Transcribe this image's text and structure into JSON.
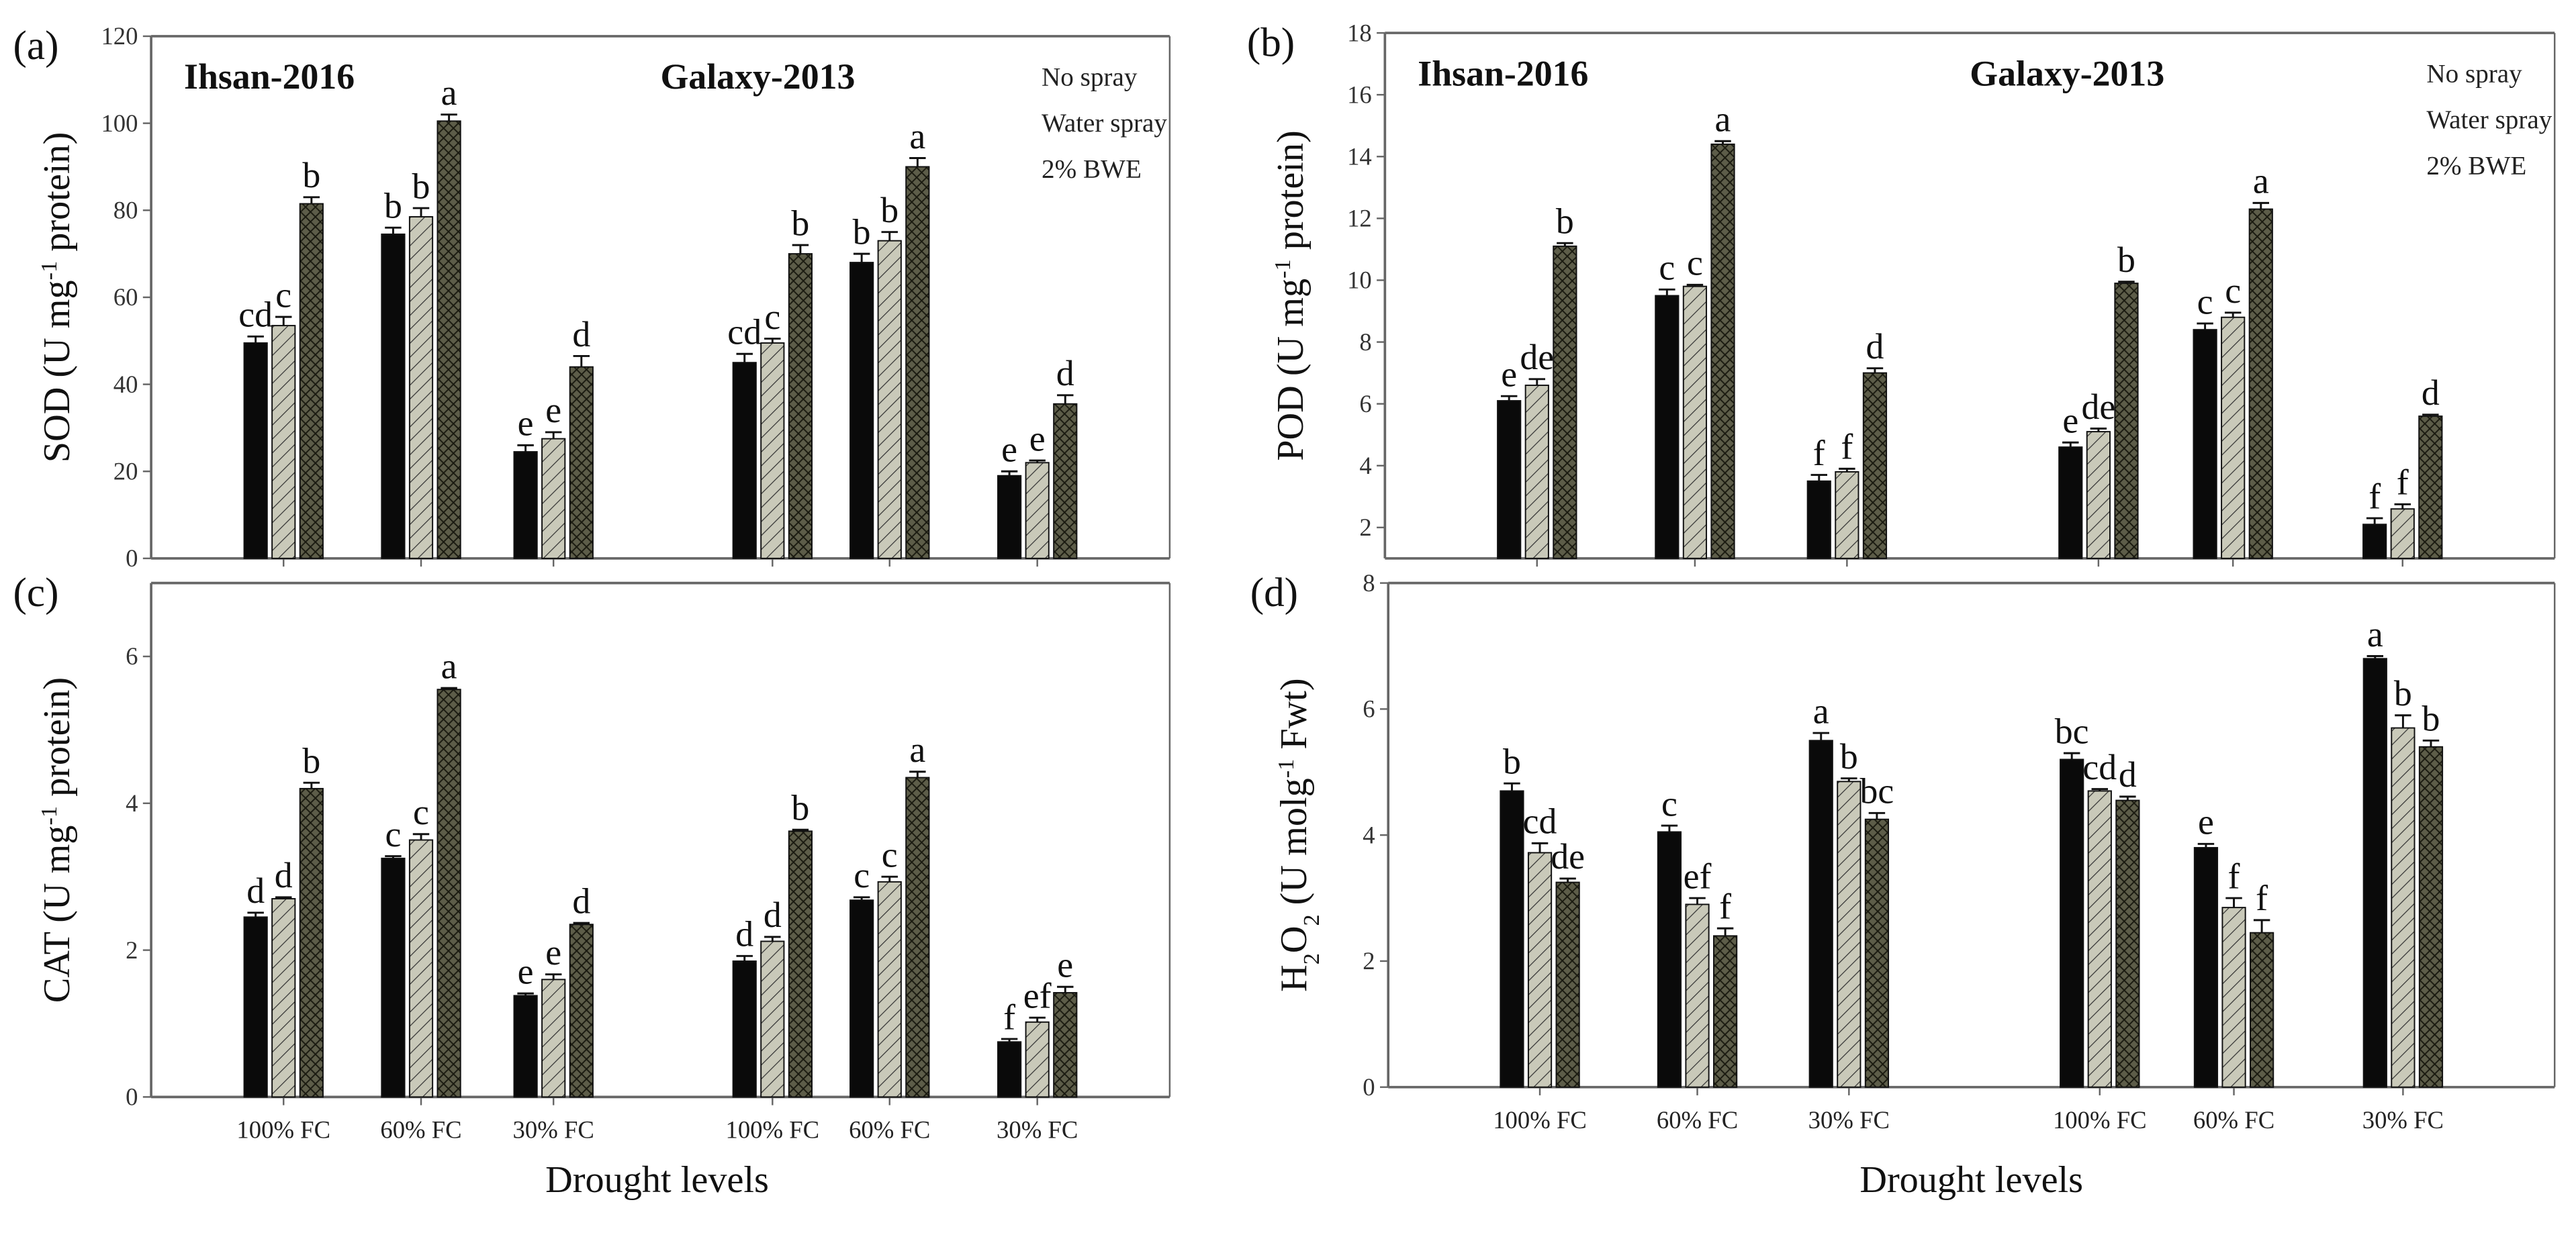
{
  "colors": {
    "no_spray": "#0a0a0a",
    "water_spray": "#c9c9b9",
    "bwe": "#5d5d49",
    "axis": "#666666"
  },
  "x_axis_label": "Drought levels",
  "chart_data": [
    {
      "type": "bar",
      "panel": "(a)",
      "ylim": [
        0,
        120
      ],
      "yticks": [
        0,
        20,
        40,
        60,
        80,
        100,
        120
      ],
      "ylabel": [
        {
          "t": "SOD (U mg"
        },
        {
          "t": "-1",
          "s": "sup"
        },
        {
          "t": " protein)"
        }
      ],
      "titles": [
        "Ihsan-2016",
        "Galaxy-2013"
      ],
      "legend": [
        "No spray",
        "Water spray",
        "2% BWE"
      ],
      "show_xticks": false,
      "categories": [
        "100% FC",
        "60% FC",
        "30% FC",
        "100% FC",
        "60% FC",
        "30% FC"
      ],
      "series": [
        {
          "name": "No spray",
          "values": [
            49.5,
            74.5,
            24.5,
            45,
            68,
            19
          ],
          "err": [
            1.5,
            1.5,
            1.5,
            2,
            2,
            1
          ],
          "letters": [
            "cd",
            "b",
            "e",
            "cd",
            "b",
            "e"
          ]
        },
        {
          "name": "Water spray",
          "values": [
            53.5,
            78.5,
            27.5,
            49.5,
            73,
            22
          ],
          "err": [
            2,
            2,
            1.5,
            1,
            2,
            0.5
          ],
          "letters": [
            "c",
            "b",
            "e",
            "c",
            "b",
            "e"
          ]
        },
        {
          "name": "2% BWE",
          "values": [
            81.5,
            100.5,
            44,
            70,
            90,
            35.5
          ],
          "err": [
            1.5,
            1.5,
            2.5,
            2,
            2,
            2
          ],
          "letters": [
            "b",
            "a",
            "d",
            "b",
            "a",
            "d"
          ]
        }
      ]
    },
    {
      "type": "bar",
      "panel": "(b)",
      "ylim": [
        1,
        18
      ],
      "yticks": [
        2,
        4,
        6,
        8,
        10,
        12,
        14,
        16,
        18
      ],
      "ylabel": [
        {
          "t": "POD (U mg"
        },
        {
          "t": "-1",
          "s": "sup"
        },
        {
          "t": " protein)"
        }
      ],
      "titles": [
        "Ihsan-2016",
        "Galaxy-2013"
      ],
      "legend": [
        "No spray",
        "Water spray",
        "2% BWE"
      ],
      "show_xticks": false,
      "categories": [
        "100% FC",
        "60% FC",
        "30% FC",
        "100% FC",
        "60% FC",
        "30% FC"
      ],
      "series": [
        {
          "name": "No spray",
          "values": [
            6.1,
            9.5,
            3.5,
            4.6,
            8.4,
            2.1
          ],
          "err": [
            0.15,
            0.2,
            0.2,
            0.15,
            0.2,
            0.2
          ],
          "letters": [
            "e",
            "c",
            "f",
            "e",
            "c",
            "f"
          ]
        },
        {
          "name": "Water spray",
          "values": [
            6.6,
            9.8,
            3.8,
            5.1,
            8.8,
            2.6
          ],
          "err": [
            0.2,
            0.05,
            0.1,
            0.1,
            0.15,
            0.15
          ],
          "letters": [
            "de",
            "c",
            "f",
            "de",
            "c",
            "f"
          ]
        },
        {
          "name": "2% BWE",
          "values": [
            11.1,
            14.4,
            7.0,
            9.9,
            12.3,
            5.6
          ],
          "err": [
            0.1,
            0.1,
            0.15,
            0.05,
            0.2,
            0.05
          ],
          "letters": [
            "b",
            "a",
            "d",
            "b",
            "a",
            "d"
          ]
        }
      ]
    },
    {
      "type": "bar",
      "panel": "(c)",
      "ylim": [
        0,
        7
      ],
      "yticks": [
        0,
        2,
        4,
        6
      ],
      "ylabel": [
        {
          "t": "CAT (U mg"
        },
        {
          "t": "-1",
          "s": "sup"
        },
        {
          "t": " protein)"
        }
      ],
      "titles": [],
      "legend": [],
      "show_xticks": true,
      "categories": [
        "100% FC",
        "60% FC",
        "30% FC",
        "100% FC",
        "60% FC",
        "30% FC"
      ],
      "series": [
        {
          "name": "No spray",
          "values": [
            2.45,
            3.25,
            1.38,
            1.85,
            2.68,
            0.75
          ],
          "err": [
            0.06,
            0.03,
            0.03,
            0.07,
            0.04,
            0.04
          ],
          "letters": [
            "d",
            "c",
            "e",
            "d",
            "c",
            "f"
          ]
        },
        {
          "name": "Water spray",
          "values": [
            2.7,
            3.5,
            1.6,
            2.12,
            2.93,
            1.02
          ],
          "err": [
            0.02,
            0.08,
            0.07,
            0.06,
            0.07,
            0.06
          ],
          "letters": [
            "d",
            "c",
            "e",
            "d",
            "c",
            "ef"
          ]
        },
        {
          "name": "2% BWE",
          "values": [
            4.2,
            5.55,
            2.35,
            3.62,
            4.35,
            1.42
          ],
          "err": [
            0.08,
            0.02,
            0.02,
            0.02,
            0.08,
            0.08
          ],
          "letters": [
            "b",
            "a",
            "d",
            "b",
            "a",
            "e"
          ]
        }
      ]
    },
    {
      "type": "bar",
      "panel": "(d)",
      "ylim": [
        0,
        8
      ],
      "yticks": [
        0,
        2,
        4,
        6,
        8
      ],
      "ylabel": [
        {
          "t": "H"
        },
        {
          "t": "2",
          "s": "sub"
        },
        {
          "t": "O"
        },
        {
          "t": "2",
          "s": "sub"
        },
        {
          "t": " (U molg"
        },
        {
          "t": "-1",
          "s": "sup"
        },
        {
          "t": " Fwt)"
        }
      ],
      "titles": [],
      "legend": [],
      "show_xticks": true,
      "categories": [
        "100% FC",
        "60% FC",
        "30% FC",
        "100% FC",
        "60% FC",
        "30% FC"
      ],
      "series": [
        {
          "name": "No spray",
          "values": [
            4.7,
            4.05,
            5.5,
            5.2,
            3.8,
            6.8
          ],
          "err": [
            0.12,
            0.1,
            0.12,
            0.1,
            0.06,
            0.04
          ],
          "letters": [
            "b",
            "c",
            "a",
            "bc",
            "e",
            "a"
          ]
        },
        {
          "name": "Water spray",
          "values": [
            3.72,
            2.9,
            4.85,
            4.7,
            2.85,
            5.7
          ],
          "err": [
            0.15,
            0.1,
            0.05,
            0.03,
            0.15,
            0.2
          ],
          "letters": [
            "cd",
            "ef",
            "b",
            "cd",
            "f",
            "b"
          ]
        },
        {
          "name": "2% BWE",
          "values": [
            3.25,
            2.4,
            4.25,
            4.55,
            2.45,
            5.4
          ],
          "err": [
            0.06,
            0.12,
            0.1,
            0.06,
            0.2,
            0.1
          ],
          "letters": [
            "de",
            "f",
            "bc",
            "d",
            "f",
            "b"
          ]
        }
      ]
    }
  ]
}
